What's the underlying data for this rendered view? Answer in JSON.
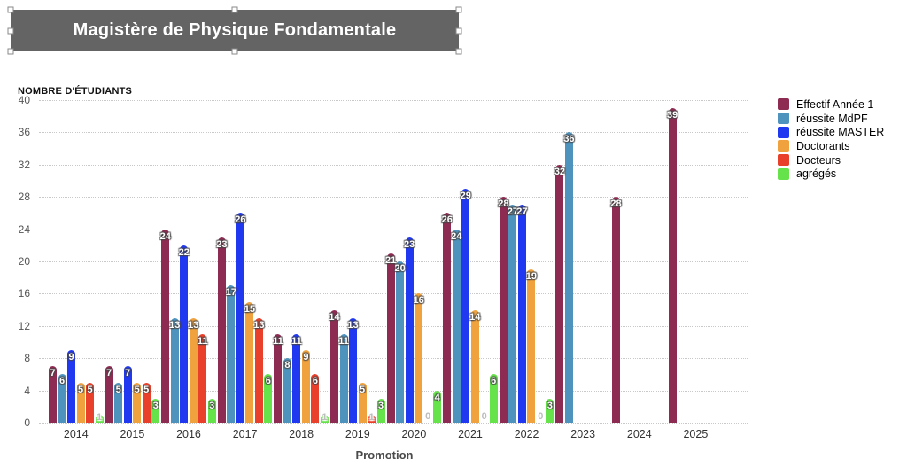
{
  "title_box": {
    "text": "Magistère de Physique Fondamentale"
  },
  "chart_data": {
    "type": "bar",
    "title": "Magistère de Physique Fondamentale",
    "ylabel": "NOMBRE D'ÉTUDIANTS",
    "xlabel": "Promotion",
    "ylim": [
      0,
      40
    ],
    "yticks": [
      0,
      4,
      8,
      12,
      16,
      20,
      24,
      28,
      32,
      36,
      40
    ],
    "grid": "dotted-horizontal",
    "legend_position": "right",
    "bar_labels": "shown on bars, white; zero/one values shown faint gray",
    "categories": [
      "2014",
      "2015",
      "2016",
      "2017",
      "2018",
      "2019",
      "2020",
      "2021",
      "2022",
      "2023",
      "2024",
      "2025"
    ],
    "series": [
      {
        "name": "Effectif Année 1",
        "color": "#8E2B52",
        "values": [
          7,
          7,
          24,
          23,
          11,
          14,
          21,
          26,
          28,
          32,
          28,
          39
        ]
      },
      {
        "name": "réussite MdPF",
        "color": "#4E93BE",
        "values": [
          6,
          5,
          13,
          17,
          8,
          11,
          20,
          24,
          27,
          36,
          null,
          null
        ]
      },
      {
        "name": "réussite MASTER",
        "color": "#2038F0",
        "values": [
          9,
          7,
          22,
          26,
          11,
          13,
          23,
          29,
          27,
          null,
          null,
          null
        ]
      },
      {
        "name": "Doctorants",
        "color": "#F0A23F",
        "values": [
          5,
          5,
          13,
          15,
          9,
          5,
          16,
          14,
          19,
          null,
          null,
          null
        ]
      },
      {
        "name": "Docteurs",
        "color": "#E8402A",
        "values": [
          5,
          5,
          11,
          13,
          6,
          1,
          0,
          0,
          0,
          null,
          null,
          null
        ]
      },
      {
        "name": "agrégés",
        "color": "#66E24A",
        "values": [
          1,
          3,
          3,
          6,
          1,
          3,
          4,
          6,
          3,
          null,
          null,
          null
        ]
      }
    ]
  }
}
